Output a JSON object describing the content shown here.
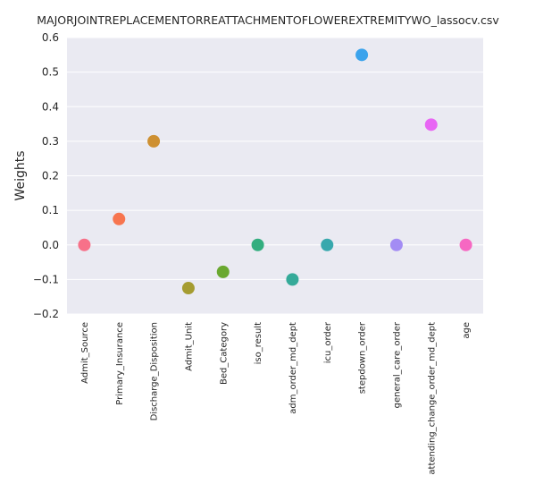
{
  "chart_data": {
    "type": "scatter",
    "title": "MAJORJOINTREPLACEMENTORREATTACHMENTOFLOWEREXTREMITYWO_lassocv.csv",
    "xlabel": "",
    "ylabel": "Weights",
    "ylim": [
      -0.2,
      0.6
    ],
    "y_ticks": [
      "−0.2",
      "−0.1",
      "0.0",
      "0.1",
      "0.2",
      "0.3",
      "0.4",
      "0.5",
      "0.6"
    ],
    "y_tick_values": [
      -0.2,
      -0.1,
      0.0,
      0.1,
      0.2,
      0.3,
      0.4,
      0.5,
      0.6
    ],
    "grid": true,
    "categories": [
      "Admit_Source",
      "Primary_Insurance",
      "Discharge_Disposition",
      "Admit_Unit",
      "Bed_Category",
      "iso_result",
      "adm_order_md_dept",
      "icu_order",
      "stepdown_order",
      "general_care_order",
      "attending_change_order_md_dept",
      "age"
    ],
    "values": [
      0.0,
      0.075,
      0.3,
      -0.125,
      -0.078,
      0.0,
      -0.1,
      0.0,
      0.55,
      0.0,
      0.348,
      0.0
    ],
    "colors": [
      "#f77189",
      "#f7754f",
      "#ce9032",
      "#a59c31",
      "#6aa830",
      "#33ae7f",
      "#35aa99",
      "#38a8ad",
      "#3ba3ec",
      "#a38cf4",
      "#e866f4",
      "#f668c2"
    ],
    "background": "#eaeaf2",
    "grid_color": "#ffffff"
  }
}
